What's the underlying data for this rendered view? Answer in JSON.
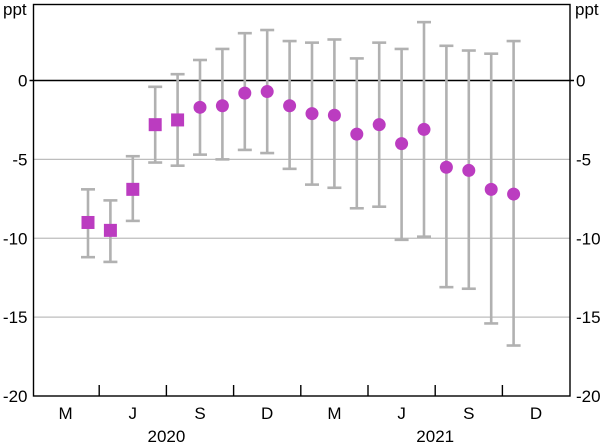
{
  "chart_data": {
    "type": "scatter",
    "title": "",
    "unit_label_left": "ppt",
    "unit_label_right": "ppt",
    "ylim": [
      -20,
      5
    ],
    "yticks": [
      0,
      -5,
      -10,
      -15,
      -20
    ],
    "grid": "horizontal gray lines at -5, -10, -15; black line at 0; black outer frame",
    "legend_position": "none",
    "x": [
      "Apr 2020",
      "May 2020",
      "Jun 2020",
      "Jul 2020",
      "Aug 2020",
      "Sep 2020",
      "Oct 2020",
      "Nov 2020",
      "Dec 2020",
      "Jan 2021",
      "Feb 2021",
      "Mar 2021",
      "Apr 2021",
      "May 2021",
      "Jun 2021",
      "Jul 2021",
      "Aug 2021",
      "Sep 2021",
      "Oct 2021",
      "Nov 2021"
    ],
    "series": [
      {
        "name": "point-estimate-with-confidence-interval",
        "markers": [
          "square",
          "square",
          "square",
          "square",
          "square",
          "circle",
          "circle",
          "circle",
          "circle",
          "circle",
          "circle",
          "circle",
          "circle",
          "circle",
          "circle",
          "circle",
          "circle",
          "circle",
          "circle",
          "circle"
        ],
        "values": [
          -9.0,
          -9.5,
          -6.9,
          -2.8,
          -2.5,
          -1.7,
          -1.6,
          -0.8,
          -0.7,
          -1.6,
          -2.1,
          -2.2,
          -3.4,
          -2.8,
          -4.0,
          -3.1,
          -5.5,
          -5.7,
          -6.9,
          -7.2
        ],
        "ci_low": [
          -11.2,
          -11.5,
          -8.9,
          -5.2,
          -5.4,
          -4.7,
          -5.0,
          -4.4,
          -4.6,
          -5.6,
          -6.6,
          -6.8,
          -8.1,
          -8.0,
          -10.1,
          -9.9,
          -13.1,
          -13.2,
          -15.4,
          -16.8
        ],
        "ci_high": [
          -6.9,
          -7.6,
          -4.8,
          -0.4,
          0.4,
          1.3,
          2.0,
          3.0,
          3.2,
          2.5,
          2.4,
          2.6,
          1.4,
          2.4,
          2.0,
          3.7,
          2.2,
          1.9,
          1.7,
          2.5
        ]
      }
    ],
    "x_axis": {
      "quarter_labels": [
        {
          "label": "M",
          "month_index": -1
        },
        {
          "label": "J",
          "month_index": 2
        },
        {
          "label": "S",
          "month_index": 5
        },
        {
          "label": "D",
          "month_index": 8
        },
        {
          "label": "M",
          "month_index": 11
        },
        {
          "label": "J",
          "month_index": 14
        },
        {
          "label": "S",
          "month_index": 17
        },
        {
          "label": "D",
          "month_index": 20
        }
      ],
      "year_labels": [
        {
          "label": "2020",
          "month_index": 3.5
        },
        {
          "label": "2021",
          "month_index": 15.5
        }
      ],
      "tick_month_indices": [
        0.5,
        3.5,
        6.5,
        9.5,
        12.5,
        15.5,
        18.5
      ]
    }
  },
  "colors": {
    "marker": "#bb3cc0",
    "whisker": "#b1b1b1",
    "gridline": "#bdbdbd",
    "axis": "#000000",
    "background": "#ffffff"
  }
}
